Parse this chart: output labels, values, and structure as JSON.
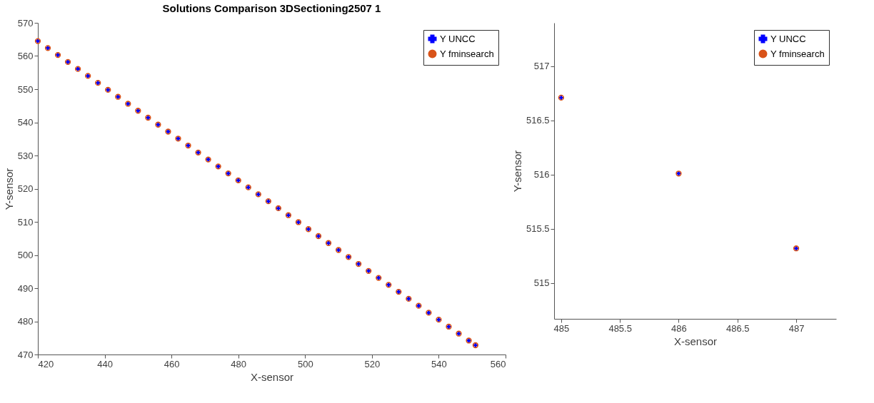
{
  "chart_data": [
    {
      "type": "scatter",
      "title": "Solutions Comparison  3DSectioning2507 1",
      "xlabel": "X-sensor",
      "ylabel": "Y-sensor",
      "x": [
        420,
        423,
        426,
        429,
        432,
        435,
        438,
        441,
        444,
        447,
        450,
        453,
        456,
        459,
        462,
        465,
        468,
        471,
        474,
        477,
        480,
        483,
        486,
        489,
        492,
        495,
        498,
        501,
        504,
        507,
        510,
        513,
        516,
        519,
        522,
        525,
        528,
        531,
        534,
        537,
        540,
        543,
        546,
        549,
        551
      ],
      "series": [
        {
          "name": "Y UNCC",
          "color": "#0000ff",
          "marker": "cross",
          "values": [
            564.5,
            562.4,
            560.3,
            558.2,
            556.1,
            554,
            551.9,
            549.8,
            547.7,
            545.6,
            543.5,
            541.4,
            539.3,
            537.2,
            535.1,
            533,
            530.9,
            528.8,
            526.7,
            524.6,
            522.5,
            520.4,
            518.3,
            516.2,
            514.1,
            512,
            509.9,
            507.8,
            505.7,
            503.6,
            501.5,
            499.4,
            497.3,
            495.2,
            493.1,
            491,
            488.9,
            486.8,
            484.7,
            482.6,
            480.5,
            478.4,
            476.3,
            474.2,
            472.8
          ]
        },
        {
          "name": "Y fminsearch",
          "color": "#d95319",
          "marker": "circle",
          "values": [
            564.5,
            562.4,
            560.3,
            558.2,
            556.1,
            554,
            551.9,
            549.8,
            547.7,
            545.6,
            543.5,
            541.4,
            539.3,
            537.2,
            535.1,
            533,
            530.9,
            528.8,
            526.7,
            524.6,
            522.5,
            520.4,
            518.3,
            516.2,
            514.1,
            512,
            509.9,
            507.8,
            505.7,
            503.6,
            501.5,
            499.4,
            497.3,
            495.2,
            493.1,
            491,
            488.9,
            486.8,
            484.7,
            482.6,
            480.5,
            478.4,
            476.3,
            474.2,
            472.8
          ]
        }
      ],
      "xlim": [
        420,
        560
      ],
      "xticks": [
        420,
        440,
        460,
        480,
        500,
        520,
        540,
        560
      ],
      "ylim": [
        470,
        570
      ],
      "yticks": [
        470,
        480,
        490,
        500,
        510,
        520,
        530,
        540,
        550,
        560,
        570
      ],
      "grid": false,
      "legend": "top right"
    },
    {
      "type": "scatter",
      "xlabel": "X-sensor",
      "ylabel": "Y-sensor",
      "x": [
        485,
        486,
        487
      ],
      "series": [
        {
          "name": "Y UNCC",
          "color": "#0000ff",
          "marker": "cross",
          "values": [
            516.71,
            516.01,
            515.32
          ]
        },
        {
          "name": "Y fminsearch",
          "color": "#d95319",
          "marker": "circle",
          "values": [
            516.71,
            516.01,
            515.32
          ]
        }
      ],
      "xlim": [
        484.94,
        487.34
      ],
      "xticks": [
        485,
        485.5,
        486,
        486.5,
        487
      ],
      "ylim": [
        514.67,
        517.4
      ],
      "yticks": [
        515,
        515.5,
        516,
        516.5,
        517
      ],
      "grid": false,
      "legend": "top right"
    }
  ]
}
